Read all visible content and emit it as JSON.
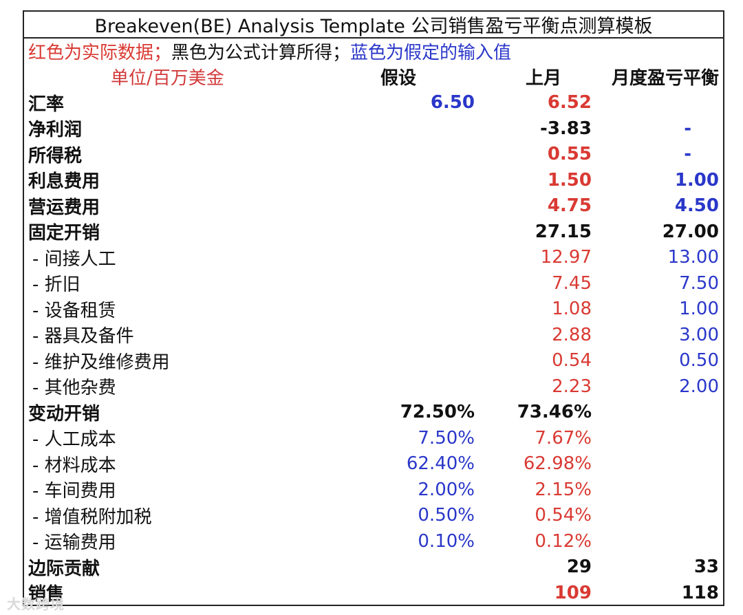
{
  "title": "Breakeven(BE) Analysis Template 公司销售盈亏平衡点测算模板",
  "legend": {
    "red": "红色为实际数据；",
    "black": "黑色为公式计算所得；",
    "blue": "蓝色为假定的输入值"
  },
  "header": {
    "unit": "单位/百万美金",
    "col_assume": "假设",
    "col_last_month": "上月",
    "col_breakeven": "月度盈亏平衡"
  },
  "rows": [
    {
      "label": "汇率",
      "assume": "6.50",
      "last": "6.52",
      "be": ""
    },
    {
      "label": "净利润",
      "assume": "",
      "last": "-3.83",
      "be": "-"
    },
    {
      "label": "所得税",
      "assume": "",
      "last": "0.55",
      "be": "-"
    },
    {
      "label": "利息费用",
      "assume": "",
      "last": "1.50",
      "be": "1.00"
    },
    {
      "label": "营运费用",
      "assume": "",
      "last": "4.75",
      "be": "4.50"
    },
    {
      "label": "固定开销",
      "assume": "",
      "last": "27.15",
      "be": "27.00"
    },
    {
      "label": " - 间接人工",
      "assume": "",
      "last": "12.97",
      "be": "13.00"
    },
    {
      "label": " - 折旧",
      "assume": "",
      "last": "7.45",
      "be": "7.50"
    },
    {
      "label": " - 设备租赁",
      "assume": "",
      "last": "1.08",
      "be": "1.00"
    },
    {
      "label": " - 器具及备件",
      "assume": "",
      "last": "2.88",
      "be": "3.00"
    },
    {
      "label": " - 维护及维修费用",
      "assume": "",
      "last": "0.54",
      "be": "0.50"
    },
    {
      "label": " - 其他杂费",
      "assume": "",
      "last": "2.23",
      "be": "2.00"
    },
    {
      "label": "变动开销",
      "assume": "72.50%",
      "last": "73.46%",
      "be": ""
    },
    {
      "label": " - 人工成本",
      "assume": "7.50%",
      "last": "7.67%",
      "be": ""
    },
    {
      "label": " - 材料成本",
      "assume": "62.40%",
      "last": "62.98%",
      "be": ""
    },
    {
      "label": " - 车间费用",
      "assume": "2.00%",
      "last": "2.15%",
      "be": ""
    },
    {
      "label": " - 增值税附加税",
      "assume": "0.50%",
      "last": "0.54%",
      "be": ""
    },
    {
      "label": " - 运输费用",
      "assume": "0.10%",
      "last": "0.12%",
      "be": ""
    },
    {
      "label": "边际贡献",
      "assume": "",
      "last": "29",
      "be": "33"
    },
    {
      "label": "销售",
      "assume": "",
      "last": "109",
      "be": "118"
    }
  ],
  "watermark": "大数跨境",
  "colors": {
    "actual": "#d93a33",
    "formula": "#111111",
    "input": "#2a37c9"
  }
}
